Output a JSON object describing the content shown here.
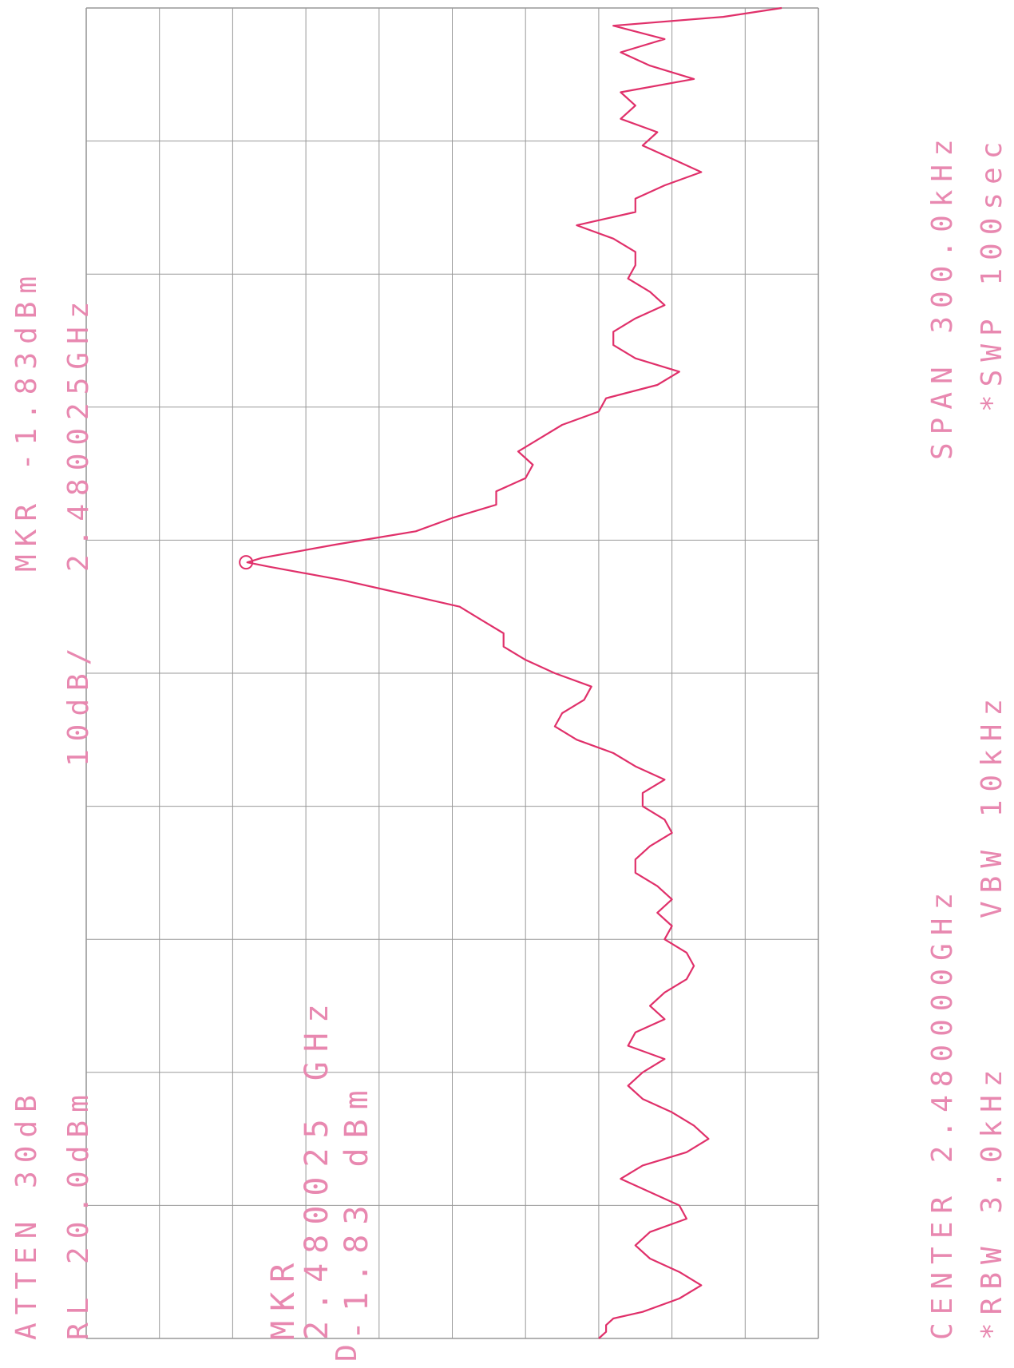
{
  "labels": {
    "atten": "ATTEN 30dB",
    "ref_level": "RL 20.0dBm",
    "scale": "10dB/",
    "marker_top": "MKR -1.83dBm",
    "marker_freq_top": "2.480025GHz",
    "marker_inset_title": "MKR",
    "marker_inset_freq": "2.480025 GHz",
    "marker_inset_level": "-1.83 dBm",
    "marker_reference": "D",
    "center": "CENTER 2.480000GHz",
    "span": "SPAN 300.0kHz",
    "rbw": "*RBW 3.0kHz",
    "vbw": "VBW 10kHz",
    "sweep": "*SWP 100sec"
  },
  "colors": {
    "trace": "#e0306a",
    "labels": "#e888b0",
    "grid": "#999999"
  },
  "chart_data": {
    "type": "line",
    "title": "",
    "xlabel": "",
    "ylabel": "",
    "center_ghz": 2.48,
    "span_khz": 300.0,
    "x_unit": "kHz offset from center",
    "y_unit": "dBm",
    "xlim": [
      -150,
      150
    ],
    "ylim": [
      -80,
      20
    ],
    "scale_db_per_div": 10,
    "grid": true,
    "marker": {
      "x": 25,
      "y": -1.83,
      "label": "MKR 2.480025 GHz -1.83 dBm"
    },
    "series": [
      {
        "x": [
          -150,
          -148.5,
          -147,
          -145.5,
          -144,
          -141,
          -138,
          -135,
          -132,
          -129,
          -126,
          -123,
          -120,
          -117,
          -114,
          -111,
          -108,
          -105,
          -102,
          -99,
          -96,
          -93,
          -90,
          -87,
          -84,
          -81,
          -78,
          -75,
          -72,
          -69,
          -66,
          -63,
          -60,
          -57,
          -54,
          -51,
          -48,
          -45,
          -42,
          -39,
          -36,
          -33,
          -30,
          -27,
          -24,
          -21,
          -18,
          -15,
          -12,
          -9,
          -6,
          -3,
          0,
          3,
          6,
          9,
          12,
          15,
          18,
          21,
          24,
          25,
          26,
          29,
          32,
          35,
          38,
          41,
          44,
          47,
          50,
          53,
          56,
          59,
          62,
          65,
          68,
          71,
          74,
          77,
          80,
          83,
          86,
          89,
          92,
          95,
          98,
          101,
          104,
          107,
          110,
          113,
          116,
          119,
          122,
          125,
          128,
          131,
          134,
          137,
          140,
          143,
          146,
          148,
          150
        ],
        "y": [
          -50,
          -51,
          -51,
          -52,
          -56,
          -61,
          -64,
          -61,
          -57,
          -55,
          -57,
          -62,
          -61,
          -57,
          -53,
          -56,
          -62,
          -65,
          -63,
          -60,
          -56,
          -54,
          -56,
          -59,
          -54,
          -55,
          -59,
          -57,
          -59,
          -62,
          -63,
          -62,
          -59,
          -60,
          -58,
          -60,
          -58,
          -55,
          -55,
          -57,
          -60,
          -59,
          -56,
          -56,
          -59,
          -55,
          -52,
          -47,
          -44,
          -45,
          -48,
          -49,
          -44,
          -40,
          -37,
          -37,
          -34,
          -31,
          -23,
          -15,
          -5,
          -2,
          -4,
          -14,
          -25,
          -30,
          -36,
          -36,
          -40,
          -41,
          -39,
          -42,
          -45,
          -50,
          -51,
          -58,
          -61,
          -55,
          -52,
          -52,
          -55,
          -59,
          -57,
          -54,
          -55,
          -55,
          -52,
          -47,
          -55,
          -55,
          -59,
          -64,
          -60,
          -56,
          -58,
          -53,
          -55,
          -53,
          -63,
          -57,
          -53,
          -59,
          -52,
          -67,
          -75
        ]
      }
    ]
  }
}
